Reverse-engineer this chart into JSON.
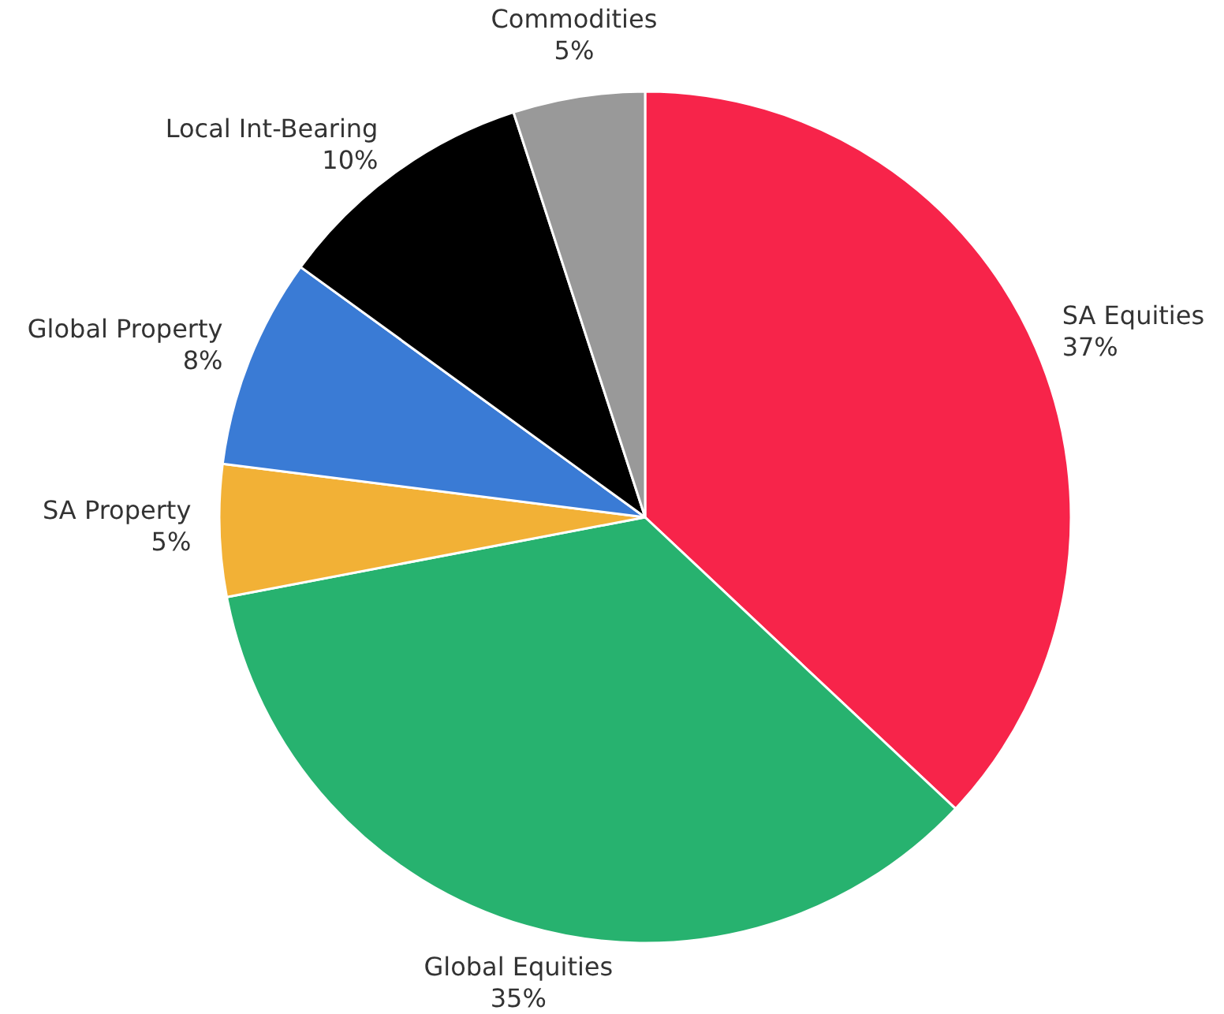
{
  "chart_data": {
    "type": "pie",
    "categories": [
      "SA Equities",
      "Global Equities",
      "SA Property",
      "Global Property",
      "Local Int-Bearing",
      "Commodities"
    ],
    "values": [
      37,
      35,
      5,
      8,
      10,
      5
    ],
    "colors": [
      "#f7244a",
      "#27b26f",
      "#f2b136",
      "#3a7bd5",
      "#000000",
      "#999999"
    ],
    "value_labels": [
      "37%",
      "35%",
      "5%",
      "8%",
      "10%",
      "5%"
    ]
  }
}
